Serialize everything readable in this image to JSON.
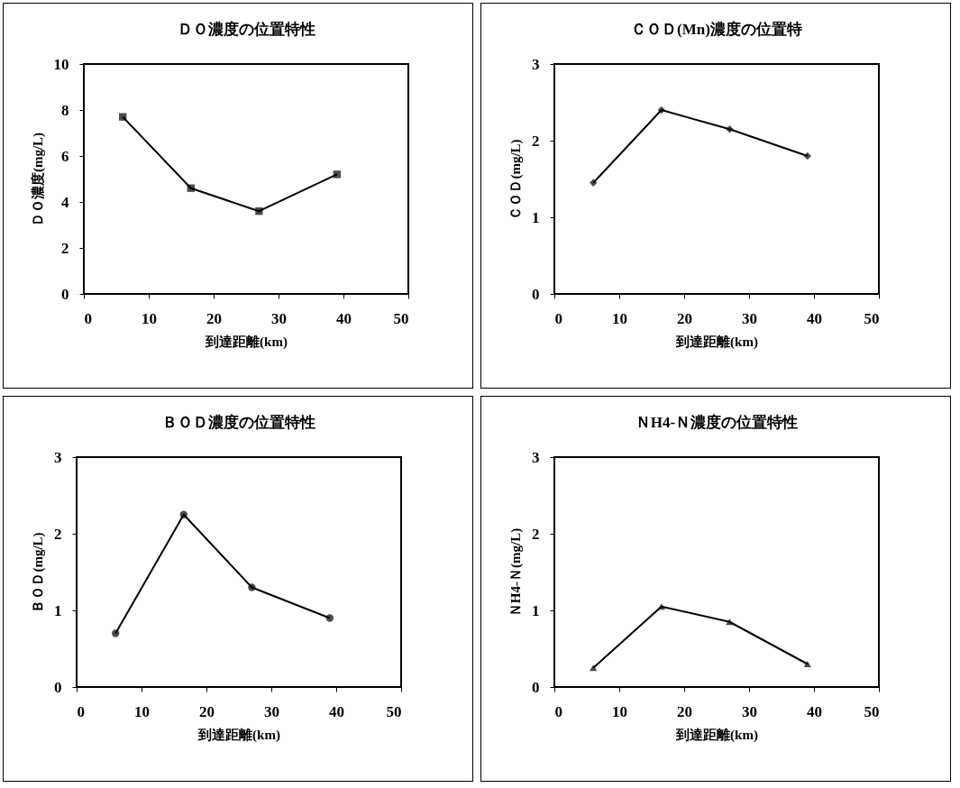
{
  "chart_data": [
    {
      "type": "line",
      "title": "ＤＯ濃度の位置特性",
      "xlabel": "到達距離(km)",
      "ylabel": "ＤＯ濃度(mg/L)",
      "x": [
        6,
        16.5,
        27,
        39
      ],
      "values": [
        7.7,
        4.6,
        3.6,
        5.2
      ],
      "color": "#000000",
      "marker": "square",
      "xlim": [
        0,
        50
      ],
      "xticks": [
        0,
        10,
        20,
        30,
        40,
        50
      ],
      "ylim": [
        0,
        10
      ],
      "yticks": [
        0,
        2,
        4,
        6,
        8,
        10
      ]
    },
    {
      "type": "line",
      "title": "ＣＯＤ(Mn)濃度の位置特",
      "xlabel": "到達距離(km)",
      "ylabel": "ＣＯＤ(mg/L)",
      "x": [
        6,
        16.5,
        27,
        39
      ],
      "values": [
        1.45,
        2.4,
        2.15,
        1.8
      ],
      "color": "#000000",
      "marker": "diamond",
      "xlim": [
        0,
        50
      ],
      "xticks": [
        0,
        10,
        20,
        30,
        40,
        50
      ],
      "ylim": [
        0,
        3
      ],
      "yticks": [
        0,
        1,
        2,
        3
      ]
    },
    {
      "type": "line",
      "title": "ＢＯＤ濃度の位置特性",
      "xlabel": "到達距離(km)",
      "ylabel": "ＢＯＤ(mg/L)",
      "x": [
        6,
        16.5,
        27,
        39
      ],
      "values": [
        0.7,
        2.25,
        1.3,
        0.9
      ],
      "color": "#000000",
      "marker": "circle",
      "xlim": [
        0,
        50
      ],
      "xticks": [
        0,
        10,
        20,
        30,
        40,
        50
      ],
      "ylim": [
        0,
        3
      ],
      "yticks": [
        0,
        1,
        2,
        3
      ]
    },
    {
      "type": "line",
      "title": "ＮH4-Ｎ濃度の位置特性",
      "xlabel": "到達距離(km)",
      "ylabel": "ＮH4-Ｎ(mg/L)",
      "x": [
        6,
        16.5,
        27,
        39
      ],
      "values": [
        0.25,
        1.05,
        0.85,
        0.3
      ],
      "color": "#000000",
      "marker": "triangle",
      "xlim": [
        0,
        50
      ],
      "xticks": [
        0,
        10,
        20,
        30,
        40,
        50
      ],
      "ylim": [
        0,
        3
      ],
      "yticks": [
        0,
        1,
        2,
        3
      ]
    }
  ]
}
